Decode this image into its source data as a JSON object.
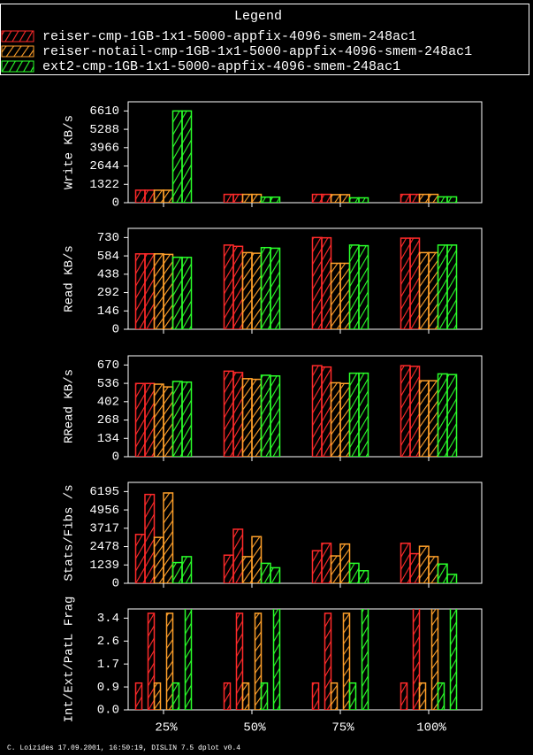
{
  "legend": {
    "title": "Legend",
    "entries": [
      {
        "name": "reiser-cmp-1GB-1x1-5000-appfix-4096-smem-248ac1",
        "color": "#ff2a2a"
      },
      {
        "name": "reiser-notail-cmp-1GB-1x1-5000-appfix-4096-smem-248ac1",
        "color": "#ffa02a"
      },
      {
        "name": "ext2-cmp-1GB-1x1-5000-appfix-4096-smem-248ac1",
        "color": "#2aff2a"
      }
    ]
  },
  "chart_data": [
    {
      "type": "bar",
      "ylabel": "Write KB/s",
      "categories": [
        "25%",
        "50%",
        "75%",
        "100%"
      ],
      "ylim": [
        0,
        7271
      ],
      "yticks": [
        0,
        1322,
        2644,
        3966,
        5288,
        6610
      ],
      "series": [
        {
          "values": [
            [
              900,
              900
            ],
            [
              600,
              600
            ],
            [
              600,
              600
            ],
            [
              600,
              600
            ]
          ]
        },
        {
          "values": [
            [
              900,
              900
            ],
            [
              600,
              600
            ],
            [
              580,
              580
            ],
            [
              600,
              600
            ]
          ]
        },
        {
          "values": [
            [
              6610,
              6610
            ],
            [
              400,
              400
            ],
            [
              350,
              350
            ],
            [
              420,
              420
            ]
          ]
        }
      ]
    },
    {
      "type": "bar",
      "ylabel": "Read KB/s",
      "categories": [
        "25%",
        "50%",
        "75%",
        "100%"
      ],
      "ylim": [
        0,
        803
      ],
      "yticks": [
        0,
        146,
        292,
        438,
        584,
        730
      ],
      "series": [
        {
          "values": [
            [
              600,
              600
            ],
            [
              670,
              660
            ],
            [
              730,
              728
            ],
            [
              725,
              725
            ]
          ]
        },
        {
          "values": [
            [
              600,
              596
            ],
            [
              610,
              605
            ],
            [
              525,
              525
            ],
            [
              610,
              610
            ]
          ]
        },
        {
          "values": [
            [
              573,
              572
            ],
            [
              650,
              645
            ],
            [
              670,
              665
            ],
            [
              670,
              670
            ]
          ]
        }
      ]
    },
    {
      "type": "bar",
      "ylabel": "RRead KB/s",
      "categories": [
        "25%",
        "50%",
        "75%",
        "100%"
      ],
      "ylim": [
        0,
        737
      ],
      "yticks": [
        0,
        134,
        268,
        402,
        536,
        670
      ],
      "series": [
        {
          "values": [
            [
              535,
              535
            ],
            [
              625,
              615
            ],
            [
              665,
              655
            ],
            [
              665,
              660
            ]
          ]
        },
        {
          "values": [
            [
              530,
              510
            ],
            [
              570,
              565
            ],
            [
              540,
              535
            ],
            [
              555,
              555
            ]
          ]
        },
        {
          "values": [
            [
              550,
              545
            ],
            [
              595,
              590
            ],
            [
              610,
              610
            ],
            [
              605,
              600
            ]
          ]
        }
      ]
    },
    {
      "type": "bar",
      "ylabel": "Stats/Fibs /s",
      "categories": [
        "25%",
        "50%",
        "75%",
        "100%"
      ],
      "ylim": [
        0,
        6814.5
      ],
      "yticks": [
        0,
        1239,
        2478,
        3717,
        4956,
        6195
      ],
      "series": [
        {
          "values": [
            [
              3300,
              6000
            ],
            [
              1900,
              3650
            ],
            [
              2200,
              2700
            ],
            [
              2700,
              2000
            ]
          ]
        },
        {
          "values": [
            [
              3100,
              6100
            ],
            [
              1800,
              3150
            ],
            [
              1850,
              2650
            ],
            [
              2500,
              1800
            ]
          ]
        },
        {
          "values": [
            [
              1400,
              1800
            ],
            [
              1350,
              1050
            ],
            [
              1350,
              850
            ],
            [
              1300,
              600
            ]
          ]
        }
      ]
    },
    {
      "type": "bar",
      "ylabel": "Int/Ext/PatL Frag",
      "categories": [
        "25%",
        "50%",
        "75%",
        "100%"
      ],
      "ylim": [
        0,
        3.762
      ],
      "yticks": [
        {
          "value": 0,
          "label": "0.0"
        },
        {
          "value": 0.855,
          "label": "0.9"
        },
        {
          "value": 1.71,
          "label": "1.7"
        },
        {
          "value": 2.565,
          "label": "2.6"
        },
        {
          "value": 3.42,
          "label": "3.4"
        }
      ],
      "series": [
        {
          "values": [
            [
              1.0,
              0,
              3.6
            ],
            [
              1.0,
              0,
              3.6
            ],
            [
              1.0,
              0,
              3.6
            ],
            [
              1.0,
              0,
              3.9
            ]
          ]
        },
        {
          "values": [
            [
              1.0,
              0,
              3.6
            ],
            [
              1.0,
              0,
              3.6
            ],
            [
              1.0,
              0,
              3.6
            ],
            [
              1.0,
              0,
              3.9
            ]
          ]
        },
        {
          "values": [
            [
              1.0,
              0,
              3.9
            ],
            [
              1.0,
              0,
              3.9
            ],
            [
              1.0,
              0,
              3.9
            ],
            [
              1.0,
              0,
              3.8
            ]
          ]
        }
      ]
    }
  ],
  "footer": "C. Loizides 17.09.2001, 16:50:19, DISLIN 7.5 dplot v0.4"
}
